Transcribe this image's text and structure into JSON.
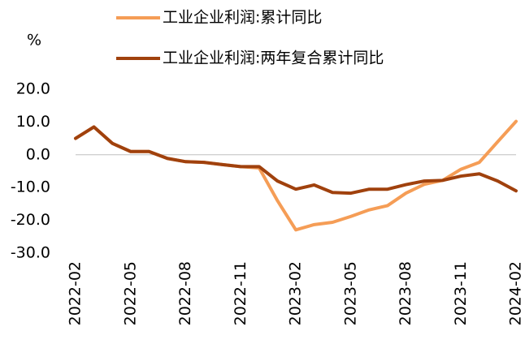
{
  "chart_data": {
    "type": "line",
    "y_label": "%",
    "categories": [
      "2022-02",
      null,
      null,
      "2022-05",
      null,
      null,
      "2022-08",
      null,
      null,
      "2022-11",
      null,
      null,
      "2023-02",
      null,
      null,
      "2023-05",
      null,
      null,
      "2023-08",
      null,
      null,
      "2023-11",
      null,
      null,
      "2024-02"
    ],
    "series": [
      {
        "name": "工业企业利润:累计同比",
        "color": "#f59d56",
        "values": [
          5.0,
          8.5,
          3.5,
          1.0,
          1.0,
          -1.1,
          -2.1,
          -2.3,
          -3.0,
          -3.6,
          -4.0,
          -14.0,
          -22.9,
          -21.3,
          -20.6,
          -18.8,
          -16.8,
          -15.5,
          -11.7,
          -9.0,
          -7.8,
          -4.4,
          -2.3,
          4.0,
          10.2
        ]
      },
      {
        "name": "工业企业利润:两年复合累计同比",
        "color": "#a0410d",
        "values": [
          5.0,
          8.5,
          3.5,
          1.0,
          1.0,
          -1.1,
          -2.1,
          -2.3,
          -3.0,
          -3.6,
          -3.6,
          -8.0,
          -10.5,
          -9.2,
          -11.5,
          -11.7,
          -10.5,
          -10.5,
          -9.1,
          -8.0,
          -7.8,
          -6.5,
          -5.8,
          -8.0,
          -11.0
        ]
      }
    ],
    "ylim": [
      -30,
      20
    ],
    "yticks": [
      {
        "value": -30,
        "label": "-30.0"
      },
      {
        "value": -20,
        "label": "-20.0"
      },
      {
        "value": -10,
        "label": "-10.0"
      },
      {
        "value": 0,
        "label": "0.0"
      },
      {
        "value": 10,
        "label": "10.0"
      },
      {
        "value": 20,
        "label": "20.0"
      }
    ]
  }
}
